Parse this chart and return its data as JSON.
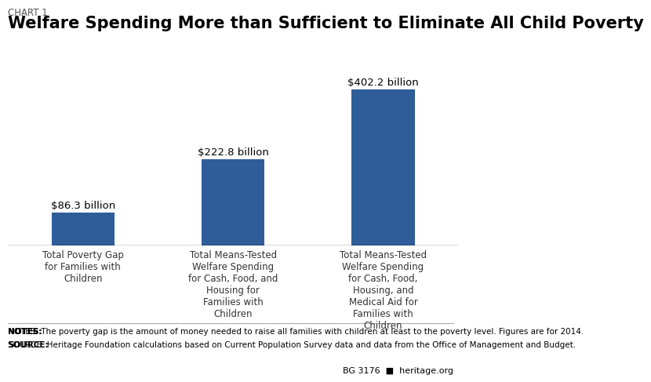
{
  "chart_label": "CHART 1",
  "title": "Welfare Spending More than Sufficient to Eliminate All Child Poverty",
  "categories": [
    "Total Poverty Gap\nfor Families with\nChildren",
    "Total Means-Tested\nWelfare Spending\nfor Cash, Food, and\nHousing for\nFamilies with\nChildren",
    "Total Means-Tested\nWelfare Spending\nfor Cash, Food,\nHousing, and\nMedical Aid for\nFamilies with\nChildren"
  ],
  "values": [
    86.3,
    222.8,
    402.2
  ],
  "value_labels": [
    "$86.3 billion",
    "$222.8 billion",
    "$402.2 billion"
  ],
  "bar_color": "#2E5D99",
  "background_color": "#FFFFFF",
  "ylim": [
    0,
    450
  ],
  "notes_bold": "NOTES:",
  "notes_text": " The poverty gap is the amount of money needed to raise all families with children at least to the poverty level. Figures are for 2014.",
  "source_bold": "SOURCE:",
  "source_text": " Heritage Foundation calculations based on Current Population Survey data and data from the Office of Management and Budget.",
  "footer_right": "BG 3176  ■  heritage.org",
  "title_fontsize": 15,
  "chart_label_fontsize": 8.5,
  "bar_label_fontsize": 9.5,
  "category_fontsize": 8.5,
  "notes_fontsize": 7.5
}
